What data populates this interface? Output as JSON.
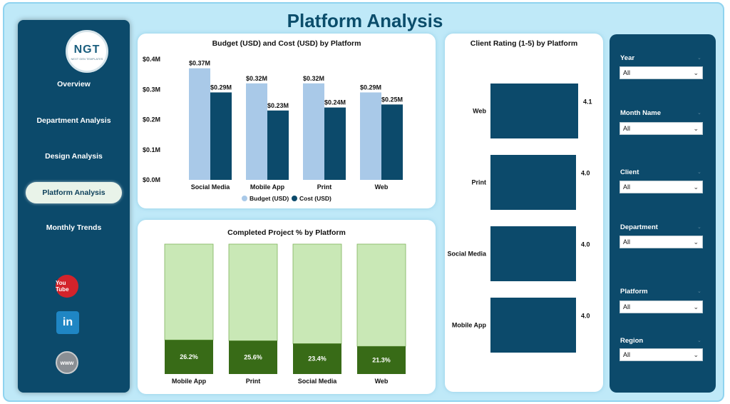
{
  "page_title": "Platform Analysis",
  "logo": {
    "text": "NGT",
    "subtitle": "NEXT GEN TEMPLATES"
  },
  "nav": [
    {
      "label": "Overview",
      "active": false
    },
    {
      "label": "Department Analysis",
      "active": false
    },
    {
      "label": "Design Analysis",
      "active": false
    },
    {
      "label": "Platform Analysis",
      "active": true
    },
    {
      "label": "Monthly Trends",
      "active": false
    }
  ],
  "social": {
    "youtube": "You Tube",
    "linkedin": "in",
    "website": "www"
  },
  "filters": [
    {
      "label": "Year",
      "value": "All"
    },
    {
      "label": "Month Name",
      "value": "All"
    },
    {
      "label": "Client",
      "value": "All"
    },
    {
      "label": "Department",
      "value": "All"
    },
    {
      "label": "Platform",
      "value": "All"
    },
    {
      "label": "Region",
      "value": "All"
    }
  ],
  "colors": {
    "budget": "#a9c9e8",
    "cost": "#0c4a6b",
    "completed": "#386b17",
    "remaining": "#c9e8b6",
    "rating": "#0c4a6b"
  },
  "chart_data": [
    {
      "type": "bar",
      "title": "Budget (USD) and Cost (USD) by Platform",
      "categories": [
        "Social Media",
        "Mobile App",
        "Print",
        "Web"
      ],
      "series": [
        {
          "name": "Budget (USD)",
          "values": [
            0.37,
            0.32,
            0.32,
            0.29
          ],
          "labels": [
            "$0.37M",
            "$0.32M",
            "$0.32M",
            "$0.29M"
          ]
        },
        {
          "name": "Cost (USD)",
          "values": [
            0.29,
            0.23,
            0.24,
            0.25
          ],
          "labels": [
            "$0.29M",
            "$0.23M",
            "$0.24M",
            "$0.25M"
          ]
        }
      ],
      "ylim": [
        0,
        0.4
      ],
      "yticks": [
        "$0.0M",
        "$0.1M",
        "$0.2M",
        "$0.3M",
        "$0.4M"
      ],
      "legend": "bottom"
    },
    {
      "type": "bar",
      "stacked": true,
      "title": "Completed Project % by Platform",
      "categories": [
        "Mobile App",
        "Print",
        "Social Media",
        "Web"
      ],
      "values": [
        26.2,
        25.6,
        23.4,
        21.3
      ],
      "labels": [
        "26.2%",
        "25.6%",
        "23.4%",
        "21.3%"
      ],
      "ylim": [
        0,
        100
      ]
    },
    {
      "type": "bar",
      "orientation": "horizontal",
      "title": "Client Rating (1-5) by Platform",
      "categories": [
        "Web",
        "Print",
        "Social Media",
        "Mobile App"
      ],
      "values": [
        4.1,
        4.0,
        4.0,
        4.0
      ],
      "labels": [
        "4.1",
        "4.0",
        "4.0",
        "4.0"
      ]
    }
  ]
}
